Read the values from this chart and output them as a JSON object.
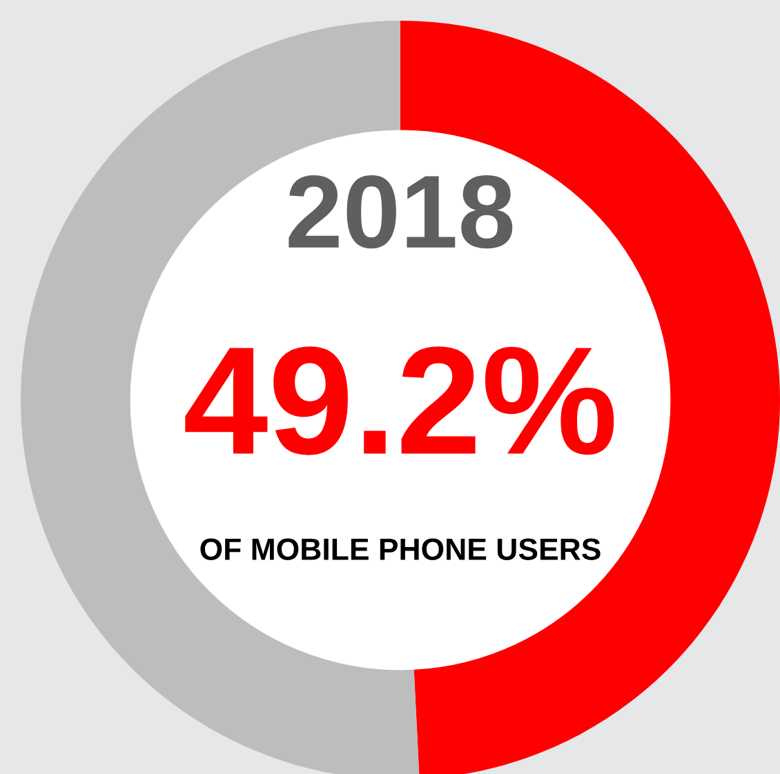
{
  "chart_data": {
    "type": "donut",
    "title": "2018",
    "categories": [
      null,
      null
    ],
    "values": [
      49.2,
      50.8
    ],
    "colors": [
      "#ff0000",
      "#bdbdbd"
    ],
    "annotations": [
      "49.2%",
      "OF MOBILE PHONE USERS"
    ],
    "legend": false
  }
}
